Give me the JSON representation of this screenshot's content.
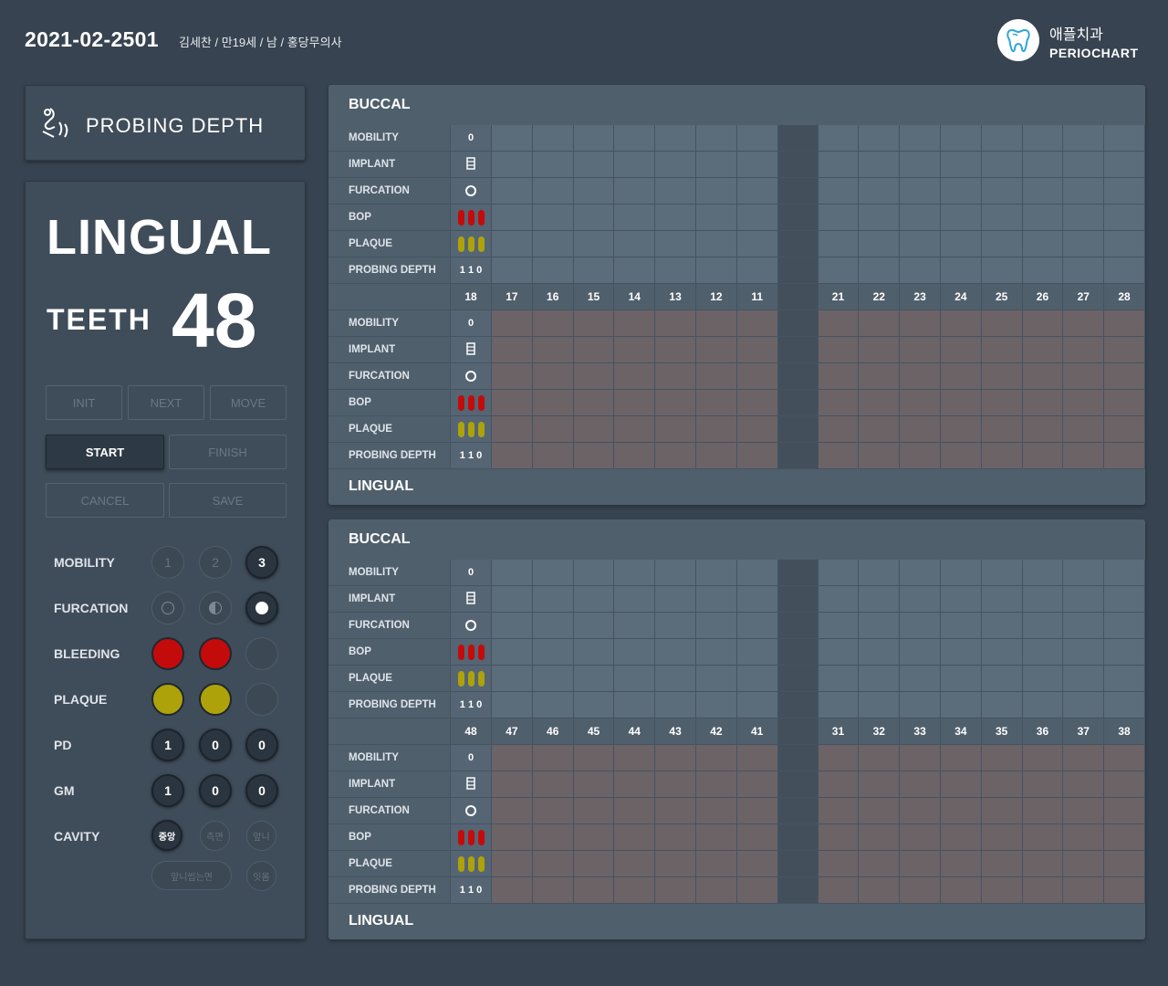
{
  "header": {
    "chart_id": "2021-02-2501",
    "patient_info": "김세찬 / 만19세 / 남 / 홍당무의사",
    "clinic_name": "애플치과",
    "app_name": "PERIOCHART"
  },
  "panel": {
    "title": "PROBING DEPTH",
    "side": "LINGUAL",
    "teeth_label": "TEETH",
    "tooth_number": "48",
    "buttons": {
      "init": "INIT",
      "next": "NEXT",
      "move": "MOVE",
      "start": "START",
      "finish": "FINISH",
      "cancel": "CANCEL",
      "save": "SAVE"
    },
    "rows": {
      "mobility": "MOBILITY",
      "furcation": "FURCATION",
      "bleeding": "BLEEDING",
      "plaque": "PLAQUE",
      "pd": "PD",
      "gm": "GM",
      "cavity": "CAVITY"
    },
    "mobility_options": [
      "1",
      "2",
      "3"
    ],
    "pd_values": [
      "1",
      "0",
      "0"
    ],
    "gm_values": [
      "1",
      "0",
      "0"
    ],
    "cavity_options": [
      "중앙",
      "측면",
      "앞니",
      "앞니씹는면",
      "잇몸"
    ]
  },
  "charts": [
    {
      "buccal_title": "BUCCAL",
      "lingual_title": "LINGUAL",
      "teeth": [
        "18",
        "17",
        "16",
        "15",
        "14",
        "13",
        "12",
        "11",
        "",
        "21",
        "22",
        "23",
        "24",
        "25",
        "26",
        "27",
        "28"
      ]
    },
    {
      "buccal_title": "BUCCAL",
      "lingual_title": "LINGUAL",
      "teeth": [
        "48",
        "47",
        "46",
        "45",
        "44",
        "43",
        "42",
        "41",
        "",
        "31",
        "32",
        "33",
        "34",
        "35",
        "36",
        "37",
        "38"
      ]
    }
  ],
  "row_labels": [
    "MOBILITY",
    "IMPLANT",
    "FURCATION",
    "BOP",
    "PLAQUE",
    "PROBING DEPTH"
  ],
  "first_tooth": {
    "mobility": "0",
    "probing_depth": "1 1 0"
  },
  "colors": {
    "bleeding": "#c40b0b",
    "plaque": "#aea20a",
    "background": "#374350"
  }
}
